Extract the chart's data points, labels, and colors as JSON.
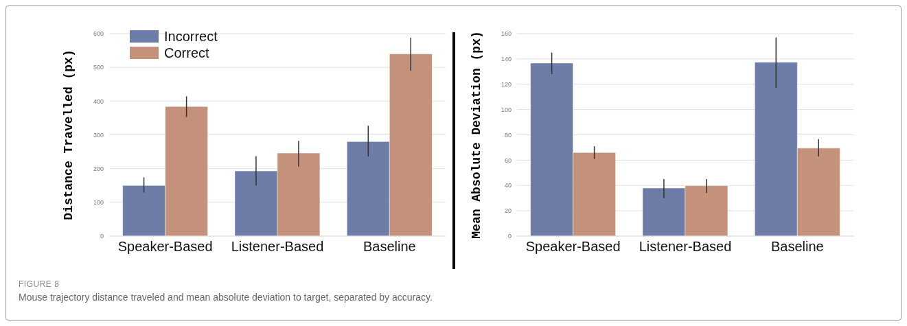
{
  "chart_data": [
    {
      "type": "bar",
      "categories": [
        "Speaker-Based",
        "Listener-Based",
        "Baseline"
      ],
      "ylabel": "Distance Travelled (px)",
      "ylim": [
        0,
        600
      ],
      "yticks": [
        0,
        100,
        200,
        300,
        400,
        500,
        600
      ],
      "grid": "y",
      "legend": "top left",
      "series": [
        {
          "name": "Incorrect",
          "color": "#6e7ca8",
          "values": [
            150,
            193,
            280
          ],
          "errors": [
            [
              129,
              174
            ],
            [
              150,
              237
            ],
            [
              236,
              327
            ]
          ]
        },
        {
          "name": "Correct",
          "color": "#c4917a",
          "values": [
            384,
            246,
            540
          ],
          "errors": [
            [
              353,
              414
            ],
            [
              206,
              282
            ],
            [
              490,
              588
            ]
          ]
        }
      ],
      "annotations": [
        "FIGURE 8",
        "Mouse trajectory distance traveled and mean absolute deviation to target, separated by accuracy."
      ]
    },
    {
      "type": "bar",
      "categories": [
        "Speaker-Based",
        "Listener-Based",
        "Baseline"
      ],
      "ylabel": "Mean Absolute Deviation (px)",
      "ylim": [
        0,
        160
      ],
      "yticks": [
        0,
        20,
        40,
        60,
        80,
        100,
        120,
        140,
        160
      ],
      "grid": "y",
      "series": [
        {
          "color": "#6e7ca8",
          "values": [
            136.7,
            38,
            137.4
          ],
          "errors": [
            [
              128,
              145
            ],
            [
              30,
              45
            ],
            [
              117,
              157
            ]
          ]
        },
        {
          "color": "#c4917a",
          "values": [
            66,
            39.8,
            69.5
          ],
          "errors": [
            [
              61,
              71
            ],
            [
              34,
              45
            ],
            [
              63,
              76.6
            ]
          ]
        }
      ]
    }
  ]
}
